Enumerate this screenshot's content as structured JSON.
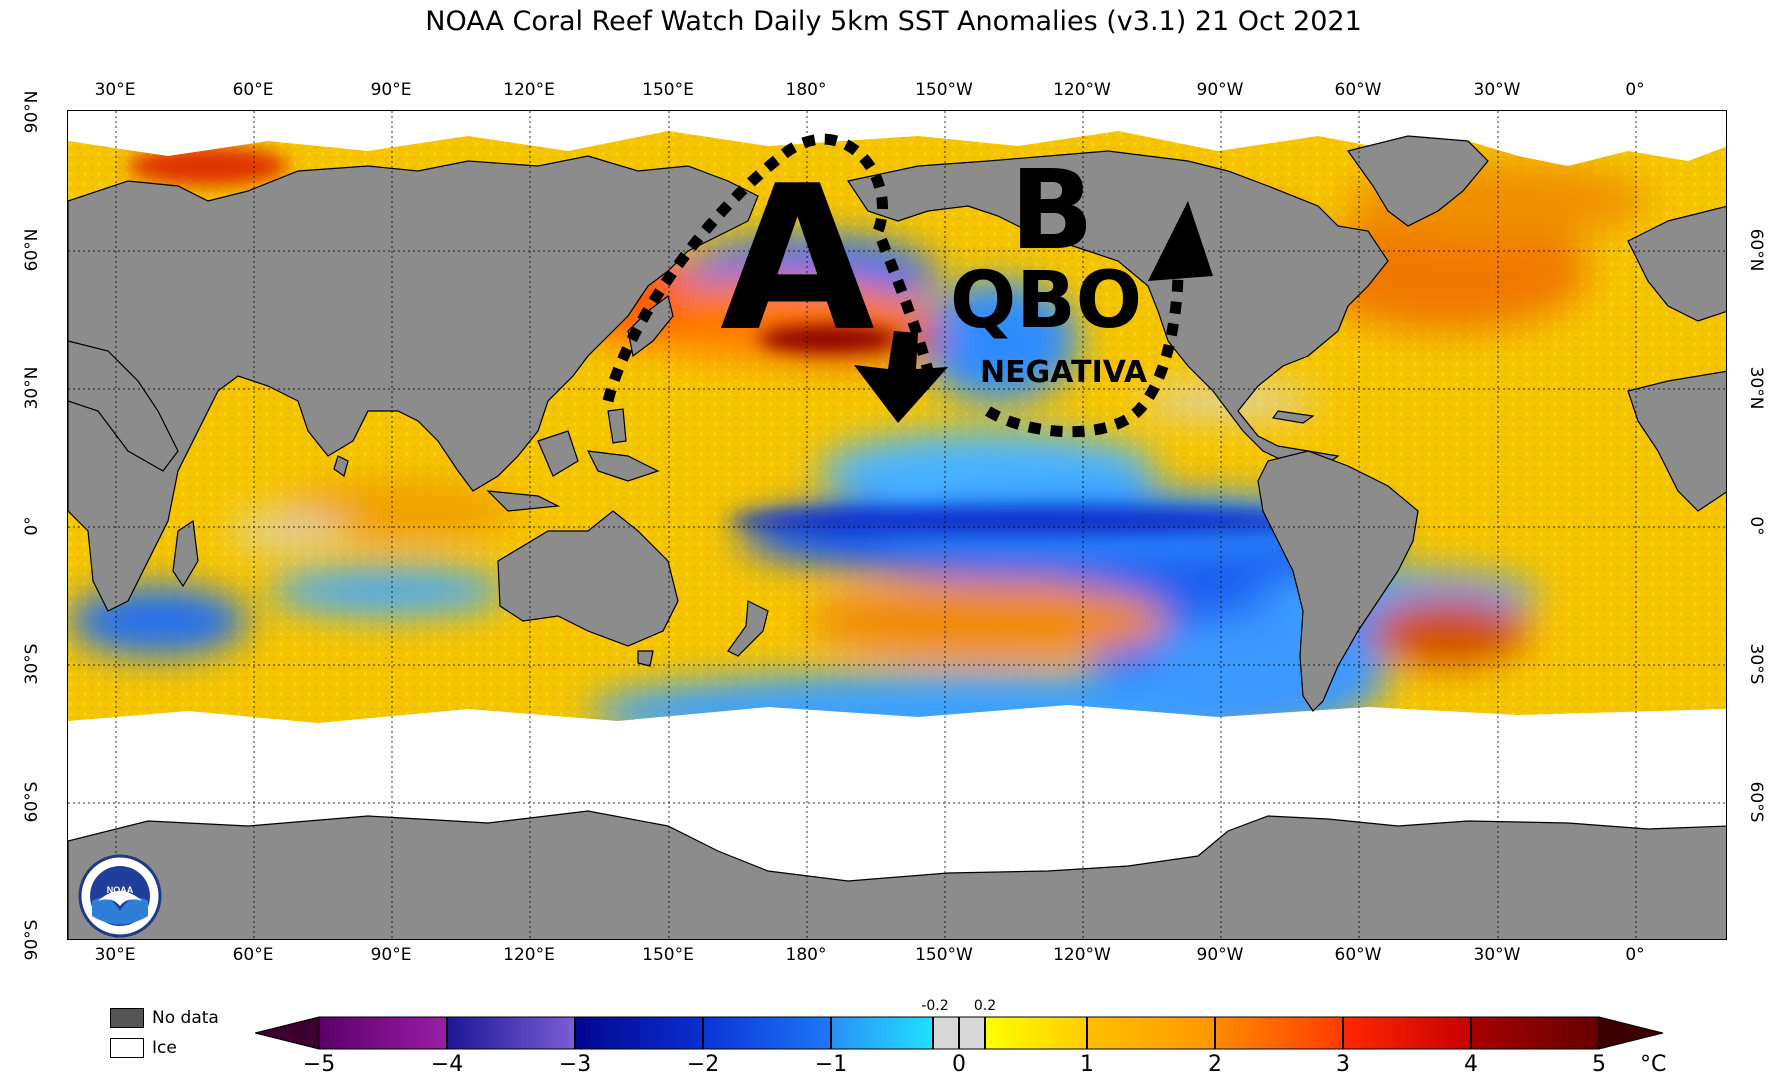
{
  "title": "NOAA Coral Reef Watch Daily 5km SST Anomalies  (v3.1)   21 Oct 2021",
  "lon_ticks": [
    "30°E",
    "60°E",
    "90°E",
    "120°E",
    "150°E",
    "180°",
    "150°W",
    "120°W",
    "90°W",
    "60°W",
    "30°W",
    "0°"
  ],
  "lat_ticks_left": [
    "90°N",
    "60°N",
    "30°N",
    "0°",
    "30°S",
    "60°S",
    "90°S"
  ],
  "lat_ticks_right": [
    "60°N",
    "30°N",
    "0°",
    "30°S",
    "60°S"
  ],
  "legend": {
    "no_data": "No data",
    "ice": "Ice",
    "no_data_color": "#555555",
    "ice_color": "#ffffff"
  },
  "colorbar": {
    "ticks": [
      "−5",
      "−4",
      "−3",
      "−2",
      "−1",
      "0",
      "1",
      "2",
      "3",
      "4",
      "5"
    ],
    "small_labels": [
      "-0.2",
      "0.2"
    ],
    "unit": "°C",
    "segments": [
      [
        "#3d0030",
        "#5a006a"
      ],
      [
        "#5a006a",
        "#9a1ea6"
      ],
      [
        "#1e1696",
        "#7a5ed6"
      ],
      [
        "#02058e",
        "#0a2fd2"
      ],
      [
        "#0a34d8",
        "#1f78f6"
      ],
      [
        "#2a8ff8",
        "#1fe0ff"
      ],
      [
        "#d8d8d8",
        "#d8d8d8"
      ],
      [
        "#ffff00",
        "#ffcc00"
      ],
      [
        "#ffc000",
        "#ff9600"
      ],
      [
        "#ff8a00",
        "#ff3c00"
      ],
      [
        "#ff2800",
        "#c80000"
      ],
      [
        "#a80000",
        "#640000"
      ]
    ]
  },
  "map": {
    "land_color": "#8c8c8c",
    "ice_color": "#ffffff",
    "base_ocean_color": "#f5c400"
  },
  "annotations": {
    "high_letter": "A",
    "low_letter": "B",
    "qbo_label": "QBO",
    "qbo_sub": "NEGATIVA"
  }
}
